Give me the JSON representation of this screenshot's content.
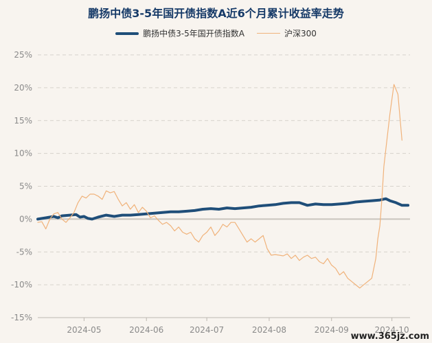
{
  "chart_data": {
    "type": "line",
    "title": "鹏扬中债3-5年国开债指数A近6个月累计收益率走势",
    "xlabel": "",
    "ylabel": "",
    "ylim": [
      -15,
      25
    ],
    "yticks": [
      25,
      20,
      15,
      10,
      5,
      0,
      -5,
      -10,
      -15
    ],
    "ytick_labels": [
      "25%",
      "20%",
      "15%",
      "10%",
      "5%",
      "0%",
      "-5%",
      "-10%",
      "-15%"
    ],
    "x_range": [
      "2024-04-08",
      "2024-10-10"
    ],
    "xticks": [
      "2024-05-01",
      "2024-06-01",
      "2024-07-01",
      "2024-08-01",
      "2024-09-01",
      "2024-10-01"
    ],
    "xtick_labels": [
      "2024-05",
      "2024-06",
      "2024-07",
      "2024-08",
      "2024-09",
      "2024-10"
    ],
    "grid": "horizontal dashed",
    "legend_position": "top",
    "series": [
      {
        "name": "鹏扬中债3-5年国开债指数A",
        "color": "#1f4e79",
        "points": [
          [
            "2024-04-08",
            0.0
          ],
          [
            "2024-04-12",
            0.2
          ],
          [
            "2024-04-16",
            0.4
          ],
          [
            "2024-04-18",
            0.2
          ],
          [
            "2024-04-20",
            0.5
          ],
          [
            "2024-04-24",
            0.6
          ],
          [
            "2024-04-27",
            0.7
          ],
          [
            "2024-04-29",
            0.3
          ],
          [
            "2024-05-01",
            0.4
          ],
          [
            "2024-05-03",
            0.1
          ],
          [
            "2024-05-05",
            0.0
          ],
          [
            "2024-05-08",
            0.3
          ],
          [
            "2024-05-12",
            0.6
          ],
          [
            "2024-05-16",
            0.4
          ],
          [
            "2024-05-20",
            0.6
          ],
          [
            "2024-05-24",
            0.6
          ],
          [
            "2024-05-28",
            0.7
          ],
          [
            "2024-06-01",
            0.8
          ],
          [
            "2024-06-05",
            0.9
          ],
          [
            "2024-06-09",
            1.0
          ],
          [
            "2024-06-13",
            1.1
          ],
          [
            "2024-06-17",
            1.1
          ],
          [
            "2024-06-21",
            1.2
          ],
          [
            "2024-06-25",
            1.3
          ],
          [
            "2024-06-29",
            1.5
          ],
          [
            "2024-07-03",
            1.6
          ],
          [
            "2024-07-07",
            1.5
          ],
          [
            "2024-07-11",
            1.7
          ],
          [
            "2024-07-15",
            1.6
          ],
          [
            "2024-07-19",
            1.7
          ],
          [
            "2024-07-23",
            1.8
          ],
          [
            "2024-07-27",
            2.0
          ],
          [
            "2024-07-31",
            2.1
          ],
          [
            "2024-08-04",
            2.2
          ],
          [
            "2024-08-08",
            2.4
          ],
          [
            "2024-08-12",
            2.5
          ],
          [
            "2024-08-16",
            2.5
          ],
          [
            "2024-08-20",
            2.1
          ],
          [
            "2024-08-24",
            2.3
          ],
          [
            "2024-08-28",
            2.2
          ],
          [
            "2024-09-01",
            2.2
          ],
          [
            "2024-09-05",
            2.3
          ],
          [
            "2024-09-09",
            2.4
          ],
          [
            "2024-09-13",
            2.6
          ],
          [
            "2024-09-17",
            2.7
          ],
          [
            "2024-09-21",
            2.8
          ],
          [
            "2024-09-25",
            2.9
          ],
          [
            "2024-09-28",
            3.1
          ],
          [
            "2024-09-30",
            2.8
          ],
          [
            "2024-10-03",
            2.5
          ],
          [
            "2024-10-06",
            2.1
          ],
          [
            "2024-10-09",
            2.1
          ]
        ]
      },
      {
        "name": "沪深300",
        "color": "#f0b27a",
        "points": [
          [
            "2024-04-08",
            -0.5
          ],
          [
            "2024-04-10",
            -0.4
          ],
          [
            "2024-04-12",
            -1.5
          ],
          [
            "2024-04-14",
            0.0
          ],
          [
            "2024-04-16",
            0.8
          ],
          [
            "2024-04-18",
            1.0
          ],
          [
            "2024-04-20",
            0.0
          ],
          [
            "2024-04-22",
            -0.5
          ],
          [
            "2024-04-24",
            0.2
          ],
          [
            "2024-04-26",
            1.0
          ],
          [
            "2024-04-28",
            2.5
          ],
          [
            "2024-04-30",
            3.5
          ],
          [
            "2024-05-02",
            3.2
          ],
          [
            "2024-05-04",
            3.8
          ],
          [
            "2024-05-06",
            3.8
          ],
          [
            "2024-05-08",
            3.5
          ],
          [
            "2024-05-10",
            3.0
          ],
          [
            "2024-05-12",
            4.3
          ],
          [
            "2024-05-14",
            4.0
          ],
          [
            "2024-05-16",
            4.2
          ],
          [
            "2024-05-18",
            3.0
          ],
          [
            "2024-05-20",
            2.0
          ],
          [
            "2024-05-22",
            2.5
          ],
          [
            "2024-05-24",
            1.5
          ],
          [
            "2024-05-26",
            2.2
          ],
          [
            "2024-05-28",
            1.0
          ],
          [
            "2024-05-30",
            1.8
          ],
          [
            "2024-06-01",
            1.2
          ],
          [
            "2024-06-03",
            0.2
          ],
          [
            "2024-06-05",
            0.5
          ],
          [
            "2024-06-07",
            -0.2
          ],
          [
            "2024-06-09",
            -0.8
          ],
          [
            "2024-06-11",
            -0.5
          ],
          [
            "2024-06-13",
            -1.0
          ],
          [
            "2024-06-15",
            -1.8
          ],
          [
            "2024-06-17",
            -1.2
          ],
          [
            "2024-06-19",
            -2.0
          ],
          [
            "2024-06-21",
            -2.3
          ],
          [
            "2024-06-23",
            -2.0
          ],
          [
            "2024-06-25",
            -3.0
          ],
          [
            "2024-06-27",
            -3.5
          ],
          [
            "2024-06-29",
            -2.5
          ],
          [
            "2024-07-01",
            -2.0
          ],
          [
            "2024-07-03",
            -1.2
          ],
          [
            "2024-07-05",
            -2.5
          ],
          [
            "2024-07-07",
            -1.8
          ],
          [
            "2024-07-09",
            -0.8
          ],
          [
            "2024-07-11",
            -1.2
          ],
          [
            "2024-07-13",
            -0.5
          ],
          [
            "2024-07-15",
            -0.5
          ],
          [
            "2024-07-17",
            -1.5
          ],
          [
            "2024-07-19",
            -2.5
          ],
          [
            "2024-07-21",
            -3.5
          ],
          [
            "2024-07-23",
            -3.0
          ],
          [
            "2024-07-25",
            -3.5
          ],
          [
            "2024-07-27",
            -3.0
          ],
          [
            "2024-07-29",
            -2.5
          ],
          [
            "2024-07-31",
            -4.5
          ],
          [
            "2024-08-02",
            -5.5
          ],
          [
            "2024-08-04",
            -5.4
          ],
          [
            "2024-08-06",
            -5.5
          ],
          [
            "2024-08-08",
            -5.6
          ],
          [
            "2024-08-10",
            -5.3
          ],
          [
            "2024-08-12",
            -6.0
          ],
          [
            "2024-08-14",
            -5.5
          ],
          [
            "2024-08-16",
            -6.3
          ],
          [
            "2024-08-18",
            -5.8
          ],
          [
            "2024-08-20",
            -5.5
          ],
          [
            "2024-08-22",
            -6.0
          ],
          [
            "2024-08-24",
            -5.8
          ],
          [
            "2024-08-26",
            -6.5
          ],
          [
            "2024-08-28",
            -6.8
          ],
          [
            "2024-08-30",
            -6.0
          ],
          [
            "2024-09-01",
            -7.0
          ],
          [
            "2024-09-03",
            -7.5
          ],
          [
            "2024-09-05",
            -8.5
          ],
          [
            "2024-09-07",
            -8.0
          ],
          [
            "2024-09-09",
            -9.0
          ],
          [
            "2024-09-11",
            -9.5
          ],
          [
            "2024-09-13",
            -10.0
          ],
          [
            "2024-09-15",
            -10.5
          ],
          [
            "2024-09-17",
            -10.0
          ],
          [
            "2024-09-19",
            -9.5
          ],
          [
            "2024-09-21",
            -9.0
          ],
          [
            "2024-09-23",
            -6.0
          ],
          [
            "2024-09-24",
            -3.0
          ],
          [
            "2024-09-25",
            -1.0
          ],
          [
            "2024-09-26",
            3.0
          ],
          [
            "2024-09-27",
            8.0
          ],
          [
            "2024-09-30",
            16.0
          ],
          [
            "2024-10-02",
            20.5
          ],
          [
            "2024-10-04",
            19.0
          ],
          [
            "2024-10-06",
            12.0
          ]
        ]
      }
    ]
  },
  "watermark": {
    "text": "www.365jz.com"
  }
}
